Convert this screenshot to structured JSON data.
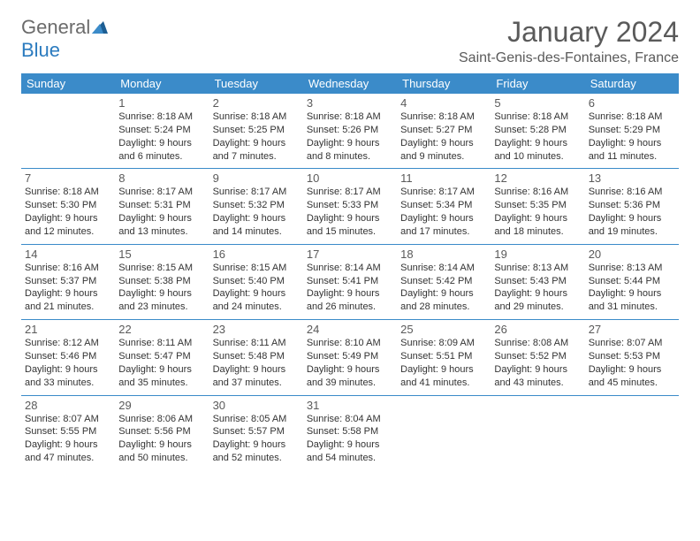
{
  "logo": {
    "part1": "General",
    "part2": "Blue"
  },
  "title": "January 2024",
  "location": "Saint-Genis-des-Fontaines, France",
  "colors": {
    "header_bg": "#3b8bc9",
    "header_text": "#ffffff",
    "border": "#3b8bc9",
    "text": "#333333",
    "muted": "#5a5a5a",
    "logo_gray": "#6b6b6b",
    "logo_blue": "#2b7bbf"
  },
  "fonts": {
    "title_size": 32,
    "location_size": 16,
    "weekday_size": 13,
    "daynum_size": 13,
    "cell_size": 11
  },
  "weekdays": [
    "Sunday",
    "Monday",
    "Tuesday",
    "Wednesday",
    "Thursday",
    "Friday",
    "Saturday"
  ],
  "weeks": [
    [
      null,
      {
        "n": "1",
        "sr": "8:18 AM",
        "ss": "5:24 PM",
        "dl": "9 hours and 6 minutes."
      },
      {
        "n": "2",
        "sr": "8:18 AM",
        "ss": "5:25 PM",
        "dl": "9 hours and 7 minutes."
      },
      {
        "n": "3",
        "sr": "8:18 AM",
        "ss": "5:26 PM",
        "dl": "9 hours and 8 minutes."
      },
      {
        "n": "4",
        "sr": "8:18 AM",
        "ss": "5:27 PM",
        "dl": "9 hours and 9 minutes."
      },
      {
        "n": "5",
        "sr": "8:18 AM",
        "ss": "5:28 PM",
        "dl": "9 hours and 10 minutes."
      },
      {
        "n": "6",
        "sr": "8:18 AM",
        "ss": "5:29 PM",
        "dl": "9 hours and 11 minutes."
      }
    ],
    [
      {
        "n": "7",
        "sr": "8:18 AM",
        "ss": "5:30 PM",
        "dl": "9 hours and 12 minutes."
      },
      {
        "n": "8",
        "sr": "8:17 AM",
        "ss": "5:31 PM",
        "dl": "9 hours and 13 minutes."
      },
      {
        "n": "9",
        "sr": "8:17 AM",
        "ss": "5:32 PM",
        "dl": "9 hours and 14 minutes."
      },
      {
        "n": "10",
        "sr": "8:17 AM",
        "ss": "5:33 PM",
        "dl": "9 hours and 15 minutes."
      },
      {
        "n": "11",
        "sr": "8:17 AM",
        "ss": "5:34 PM",
        "dl": "9 hours and 17 minutes."
      },
      {
        "n": "12",
        "sr": "8:16 AM",
        "ss": "5:35 PM",
        "dl": "9 hours and 18 minutes."
      },
      {
        "n": "13",
        "sr": "8:16 AM",
        "ss": "5:36 PM",
        "dl": "9 hours and 19 minutes."
      }
    ],
    [
      {
        "n": "14",
        "sr": "8:16 AM",
        "ss": "5:37 PM",
        "dl": "9 hours and 21 minutes."
      },
      {
        "n": "15",
        "sr": "8:15 AM",
        "ss": "5:38 PM",
        "dl": "9 hours and 23 minutes."
      },
      {
        "n": "16",
        "sr": "8:15 AM",
        "ss": "5:40 PM",
        "dl": "9 hours and 24 minutes."
      },
      {
        "n": "17",
        "sr": "8:14 AM",
        "ss": "5:41 PM",
        "dl": "9 hours and 26 minutes."
      },
      {
        "n": "18",
        "sr": "8:14 AM",
        "ss": "5:42 PM",
        "dl": "9 hours and 28 minutes."
      },
      {
        "n": "19",
        "sr": "8:13 AM",
        "ss": "5:43 PM",
        "dl": "9 hours and 29 minutes."
      },
      {
        "n": "20",
        "sr": "8:13 AM",
        "ss": "5:44 PM",
        "dl": "9 hours and 31 minutes."
      }
    ],
    [
      {
        "n": "21",
        "sr": "8:12 AM",
        "ss": "5:46 PM",
        "dl": "9 hours and 33 minutes."
      },
      {
        "n": "22",
        "sr": "8:11 AM",
        "ss": "5:47 PM",
        "dl": "9 hours and 35 minutes."
      },
      {
        "n": "23",
        "sr": "8:11 AM",
        "ss": "5:48 PM",
        "dl": "9 hours and 37 minutes."
      },
      {
        "n": "24",
        "sr": "8:10 AM",
        "ss": "5:49 PM",
        "dl": "9 hours and 39 minutes."
      },
      {
        "n": "25",
        "sr": "8:09 AM",
        "ss": "5:51 PM",
        "dl": "9 hours and 41 minutes."
      },
      {
        "n": "26",
        "sr": "8:08 AM",
        "ss": "5:52 PM",
        "dl": "9 hours and 43 minutes."
      },
      {
        "n": "27",
        "sr": "8:07 AM",
        "ss": "5:53 PM",
        "dl": "9 hours and 45 minutes."
      }
    ],
    [
      {
        "n": "28",
        "sr": "8:07 AM",
        "ss": "5:55 PM",
        "dl": "9 hours and 47 minutes."
      },
      {
        "n": "29",
        "sr": "8:06 AM",
        "ss": "5:56 PM",
        "dl": "9 hours and 50 minutes."
      },
      {
        "n": "30",
        "sr": "8:05 AM",
        "ss": "5:57 PM",
        "dl": "9 hours and 52 minutes."
      },
      {
        "n": "31",
        "sr": "8:04 AM",
        "ss": "5:58 PM",
        "dl": "9 hours and 54 minutes."
      },
      null,
      null,
      null
    ]
  ],
  "labels": {
    "sunrise": "Sunrise:",
    "sunset": "Sunset:",
    "daylight": "Daylight:"
  }
}
